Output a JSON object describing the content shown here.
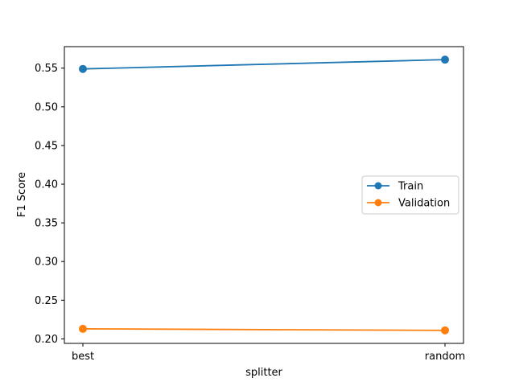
{
  "chart_data": {
    "type": "line",
    "title": "",
    "xlabel": "splitter",
    "ylabel": "F1 Score",
    "categories": [
      "best",
      "random"
    ],
    "series": [
      {
        "name": "Train",
        "values": [
          0.549,
          0.561
        ],
        "color": "#1f77b4"
      },
      {
        "name": "Validation",
        "values": [
          0.213,
          0.211
        ],
        "color": "#ff7f0e"
      }
    ],
    "ylim": [
      0.1942,
      0.5778
    ],
    "yticks": [
      0.2,
      0.25,
      0.3,
      0.35,
      0.4,
      0.45,
      0.5,
      0.55
    ],
    "ytick_labels": [
      "0.20",
      "0.25",
      "0.30",
      "0.35",
      "0.40",
      "0.45",
      "0.50",
      "0.55"
    ],
    "grid": false,
    "legend_position": "center-right",
    "marker": "circle"
  }
}
